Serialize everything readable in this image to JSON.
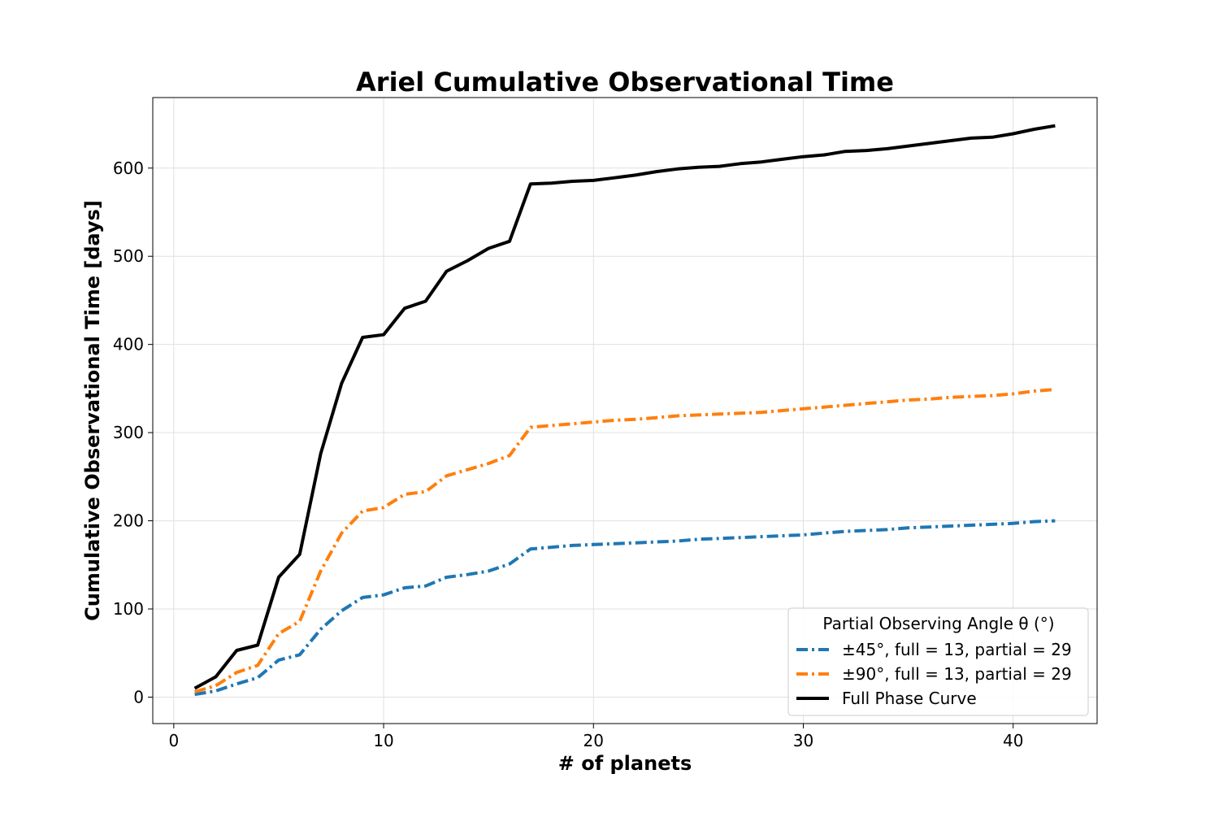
{
  "chart_data": {
    "type": "line",
    "title": "Ariel Cumulative Observational Time",
    "xlabel": "# of planets",
    "ylabel": "Cumulative Observational Time [days]",
    "xlim": [
      -1,
      44
    ],
    "ylim": [
      -30,
      680
    ],
    "xticks": [
      0,
      10,
      20,
      30,
      40
    ],
    "yticks": [
      0,
      100,
      200,
      300,
      400,
      500,
      600
    ],
    "grid": true,
    "legend": {
      "placement": "lower-right",
      "title": "Partial Observing Angle θ (°)"
    },
    "x": [
      1,
      2,
      3,
      4,
      5,
      6,
      7,
      8,
      9,
      10,
      11,
      12,
      13,
      14,
      15,
      16,
      17,
      18,
      19,
      20,
      21,
      22,
      23,
      24,
      25,
      26,
      27,
      28,
      29,
      30,
      31,
      32,
      33,
      34,
      35,
      36,
      37,
      38,
      39,
      40,
      41,
      42
    ],
    "series": [
      {
        "name": "±45°, full = 13, partial = 29",
        "color": "#1f77b4",
        "style": "dashdot",
        "values": [
          3,
          7,
          15,
          22,
          42,
          48,
          77,
          98,
          113,
          116,
          124,
          126,
          136,
          139,
          143,
          151,
          168,
          170,
          172,
          173,
          174,
          175,
          176,
          177,
          179,
          180,
          181,
          182,
          183,
          184,
          186,
          188,
          189,
          190,
          192,
          193,
          194,
          195,
          196,
          197,
          199,
          200
        ]
      },
      {
        "name": "±90°, full = 13, partial = 29",
        "color": "#ff7f0e",
        "style": "dashdot",
        "values": [
          6,
          13,
          28,
          36,
          72,
          86,
          143,
          186,
          211,
          215,
          230,
          233,
          251,
          258,
          265,
          274,
          306,
          308,
          310,
          312,
          314,
          315,
          317,
          319,
          320,
          321,
          322,
          323,
          325,
          327,
          329,
          331,
          333,
          335,
          337,
          338,
          340,
          341,
          342,
          344,
          347,
          349
        ]
      },
      {
        "name": "Full Phase Curve",
        "color": "#000000",
        "style": "solid",
        "values": [
          10,
          23,
          53,
          59,
          136,
          162,
          276,
          356,
          408,
          411,
          441,
          449,
          483,
          495,
          509,
          517,
          582,
          583,
          585,
          586,
          589,
          592,
          596,
          599,
          601,
          602,
          605,
          607,
          610,
          613,
          615,
          619,
          620,
          622,
          625,
          628,
          631,
          634,
          635,
          639,
          644,
          648
        ]
      }
    ]
  }
}
